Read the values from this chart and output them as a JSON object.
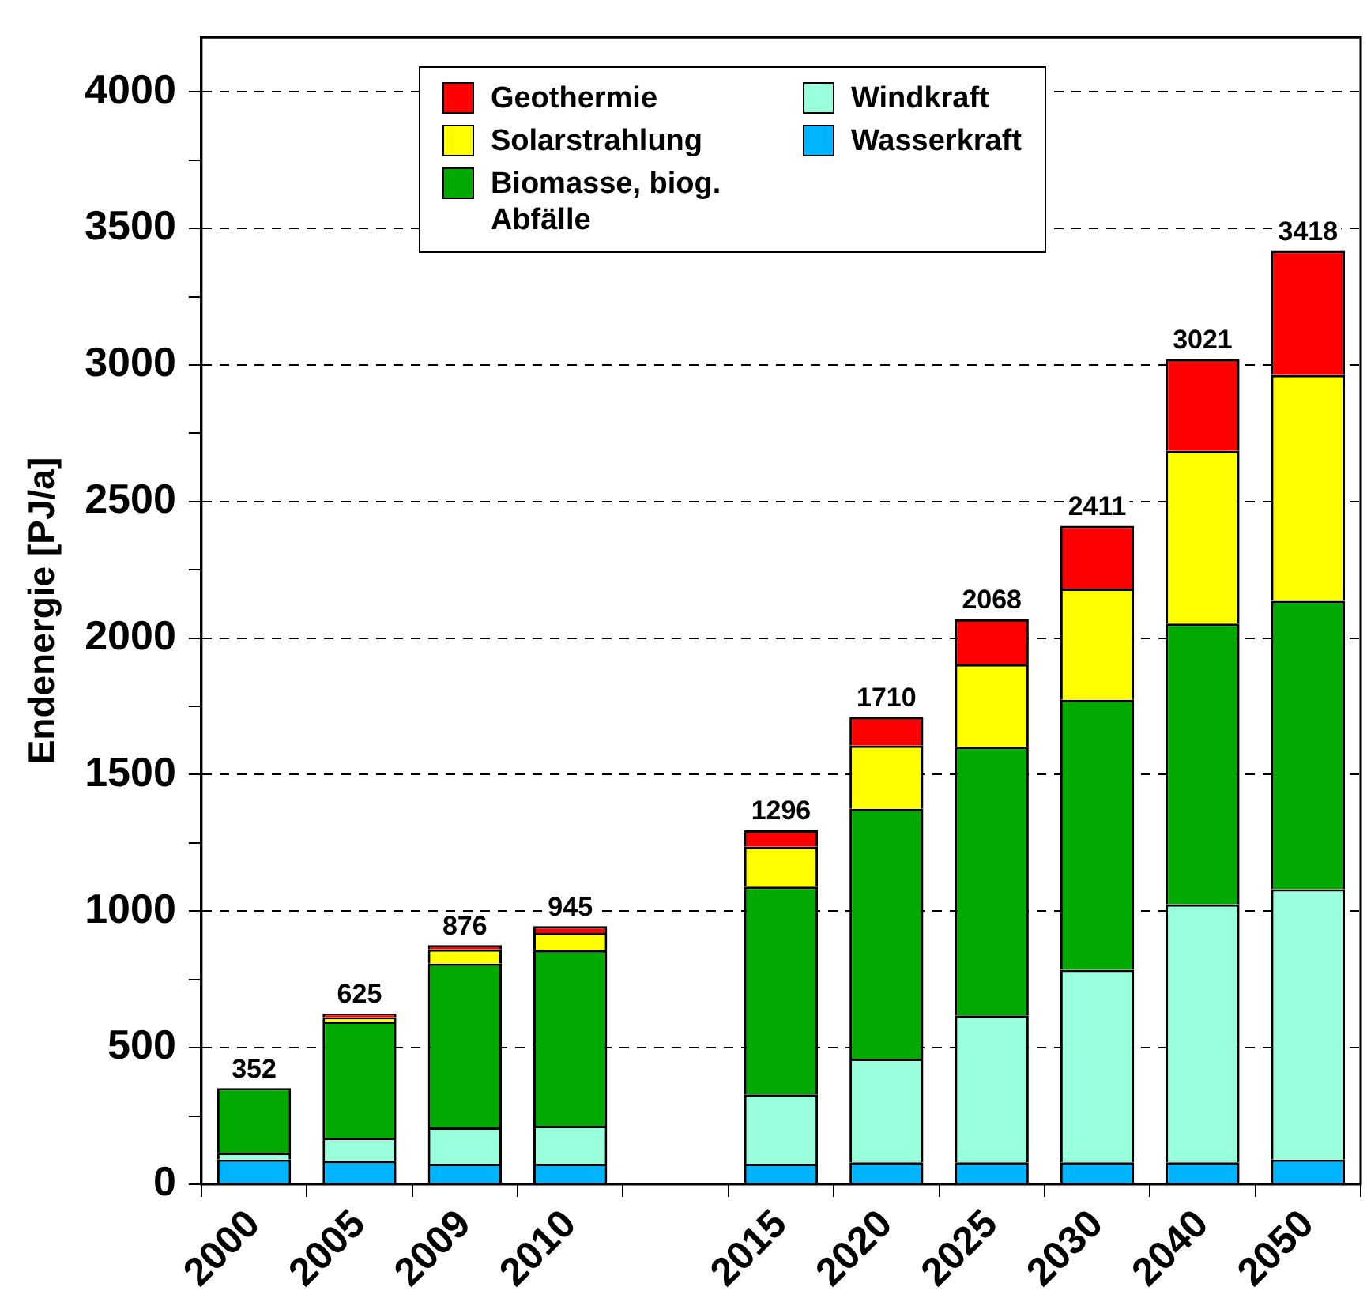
{
  "chart_data": {
    "type": "bar",
    "stacked": true,
    "ylabel": "Endenergie [PJ/a]",
    "categories": [
      "2000",
      "2005",
      "2009",
      "2010",
      null,
      "2015",
      "2020",
      "2025",
      "2030",
      "2040",
      "2050"
    ],
    "series": [
      {
        "name": "Wasserkraft",
        "color": "#00b4ff",
        "values": [
          90,
          85,
          75,
          75,
          null,
          75,
          80,
          80,
          80,
          80,
          90
        ]
      },
      {
        "name": "Windkraft",
        "color": "#99ffdd",
        "values": [
          25,
          85,
          133,
          139,
          null,
          254,
          380,
          538,
          705,
          945,
          990
        ]
      },
      {
        "name": "Biomasse, biog. Abfälle",
        "color": "#00aa00",
        "values": [
          237,
          426,
          600,
          643,
          null,
          761,
          915,
          983,
          989,
          1028,
          1056
        ]
      },
      {
        "name": "Solarstrahlung",
        "color": "#ffff00",
        "values": [
          null,
          15,
          52,
          63,
          null,
          146,
          231,
          303,
          407,
          632,
          827
        ]
      },
      {
        "name": "Geothermie",
        "color": "#ff0000",
        "values": [
          null,
          14,
          16,
          25,
          null,
          60,
          104,
          164,
          230,
          336,
          455
        ]
      }
    ],
    "totals": [
      "352",
      "625",
      "876",
      "945",
      null,
      "1296",
      "1710",
      "2068",
      "2411",
      "3021",
      "3418"
    ],
    "ylim": [
      0,
      4200
    ],
    "yticks": [
      0,
      {
        "value": 250,
        "label": null
      },
      500,
      {
        "value": 750,
        "label": null
      },
      1000,
      {
        "value": 1250,
        "label": null
      },
      1500,
      {
        "value": 1750,
        "label": null
      },
      2000,
      {
        "value": 2250,
        "label": null
      },
      2500,
      {
        "value": 2750,
        "label": null
      },
      3000,
      {
        "value": 3250,
        "label": null
      },
      3500,
      {
        "value": 3750,
        "label": null
      },
      4000
    ],
    "grid": "y",
    "legend": "top"
  }
}
